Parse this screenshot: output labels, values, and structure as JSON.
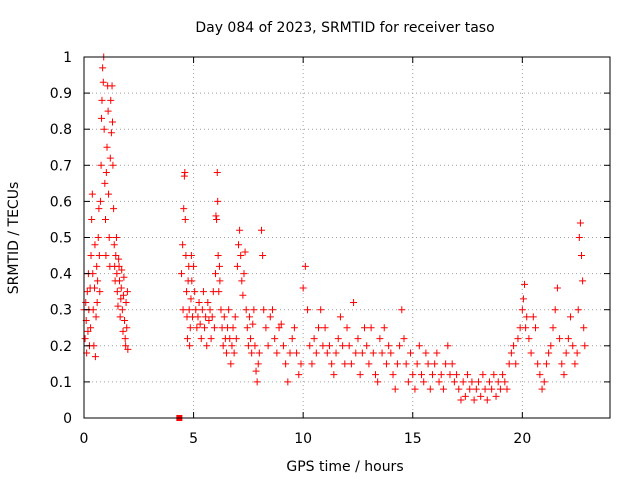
{
  "chart_data": {
    "type": "scatter",
    "title": "Day 084 of 2023, SRMTID for receiver taso",
    "xlabel": "GPS time / hours",
    "ylabel": "SRMTID / TECUs",
    "xlim": [
      0,
      24
    ],
    "ylim": [
      0,
      1
    ],
    "x_ticks": [
      0,
      5,
      10,
      15,
      20
    ],
    "x_tick_labels": [
      "0",
      "5",
      "10",
      "15",
      "20"
    ],
    "y_ticks": [
      0,
      0.1,
      0.2,
      0.3,
      0.4,
      0.5,
      0.6,
      0.7,
      0.8,
      0.9,
      1
    ],
    "y_tick_labels": [
      "0",
      "0.1",
      "0.2",
      "0.3",
      "0.4",
      "0.5",
      "0.6",
      "0.7",
      "0.8",
      "0.9",
      "1"
    ],
    "grid": true,
    "marker": "+",
    "color": "#ff0000",
    "gap_marker": {
      "x": 4.35,
      "y": 0.0
    },
    "series": [
      {
        "name": "SRMTID",
        "points": [
          [
            0.0,
            0.3
          ],
          [
            0.05,
            0.22
          ],
          [
            0.08,
            0.32
          ],
          [
            0.1,
            0.27
          ],
          [
            0.12,
            0.18
          ],
          [
            0.15,
            0.35
          ],
          [
            0.18,
            0.24
          ],
          [
            0.2,
            0.4
          ],
          [
            0.22,
            0.3
          ],
          [
            0.25,
            0.2
          ],
          [
            0.28,
            0.36
          ],
          [
            0.3,
            0.25
          ],
          [
            0.32,
            0.45
          ],
          [
            0.35,
            0.55
          ],
          [
            0.38,
            0.62
          ],
          [
            0.4,
            0.4
          ],
          [
            0.42,
            0.3
          ],
          [
            0.45,
            0.2
          ],
          [
            0.48,
            0.36
          ],
          [
            0.5,
            0.48
          ],
          [
            0.52,
            0.17
          ],
          [
            0.55,
            0.28
          ],
          [
            0.58,
            0.42
          ],
          [
            0.6,
            0.32
          ],
          [
            0.62,
            0.38
          ],
          [
            0.65,
            0.5
          ],
          [
            0.68,
            0.58
          ],
          [
            0.7,
            0.45
          ],
          [
            0.72,
            0.35
          ],
          [
            0.75,
            0.6
          ],
          [
            0.78,
            0.7
          ],
          [
            0.8,
            0.83
          ],
          [
            0.82,
            0.88
          ],
          [
            0.85,
            0.97
          ],
          [
            0.88,
            0.93
          ],
          [
            0.9,
            1.0
          ],
          [
            0.92,
            0.8
          ],
          [
            0.95,
            0.65
          ],
          [
            0.98,
            0.55
          ],
          [
            1.0,
            0.45
          ],
          [
            1.02,
            0.68
          ],
          [
            1.05,
            0.75
          ],
          [
            1.08,
            0.92
          ],
          [
            1.1,
            0.85
          ],
          [
            1.12,
            0.62
          ],
          [
            1.15,
            0.5
          ],
          [
            1.18,
            0.42
          ],
          [
            1.2,
            0.72
          ],
          [
            1.22,
            0.88
          ],
          [
            1.25,
            0.79
          ],
          [
            1.28,
            0.92
          ],
          [
            1.3,
            0.82
          ],
          [
            1.32,
            0.7
          ],
          [
            1.35,
            0.58
          ],
          [
            1.38,
            0.48
          ],
          [
            1.4,
            0.42
          ],
          [
            1.42,
            0.38
          ],
          [
            1.45,
            0.45
          ],
          [
            1.48,
            0.5
          ],
          [
            1.5,
            0.4
          ],
          [
            1.52,
            0.35
          ],
          [
            1.55,
            0.31
          ],
          [
            1.58,
            0.44
          ],
          [
            1.6,
            0.42
          ],
          [
            1.62,
            0.38
          ],
          [
            1.65,
            0.28
          ],
          [
            1.68,
            0.33
          ],
          [
            1.7,
            0.36
          ],
          [
            1.72,
            0.41
          ],
          [
            1.75,
            0.3
          ],
          [
            1.78,
            0.24
          ],
          [
            1.8,
            0.34
          ],
          [
            1.82,
            0.39
          ],
          [
            1.85,
            0.27
          ],
          [
            1.88,
            0.22
          ],
          [
            1.9,
            0.2
          ],
          [
            1.92,
            0.32
          ],
          [
            1.95,
            0.25
          ],
          [
            1.98,
            0.35
          ],
          [
            2.0,
            0.19
          ],
          [
            4.45,
            0.4
          ],
          [
            4.5,
            0.48
          ],
          [
            4.52,
            0.3
          ],
          [
            4.55,
            0.58
          ],
          [
            4.58,
            0.67
          ],
          [
            4.6,
            0.68
          ],
          [
            4.62,
            0.55
          ],
          [
            4.65,
            0.45
          ],
          [
            4.68,
            0.35
          ],
          [
            4.7,
            0.28
          ],
          [
            4.72,
            0.22
          ],
          [
            4.75,
            0.38
          ],
          [
            4.78,
            0.42
          ],
          [
            4.8,
            0.3
          ],
          [
            4.82,
            0.2
          ],
          [
            4.85,
            0.25
          ],
          [
            4.88,
            0.33
          ],
          [
            4.9,
            0.45
          ],
          [
            4.92,
            0.38
          ],
          [
            4.95,
            0.28
          ],
          [
            5.0,
            0.42
          ],
          [
            5.05,
            0.35
          ],
          [
            5.1,
            0.3
          ],
          [
            5.15,
            0.25
          ],
          [
            5.2,
            0.28
          ],
          [
            5.25,
            0.32
          ],
          [
            5.3,
            0.26
          ],
          [
            5.35,
            0.22
          ],
          [
            5.4,
            0.3
          ],
          [
            5.45,
            0.35
          ],
          [
            5.5,
            0.25
          ],
          [
            5.55,
            0.28
          ],
          [
            5.6,
            0.2
          ],
          [
            5.65,
            0.32
          ],
          [
            5.7,
            0.27
          ],
          [
            5.75,
            0.3
          ],
          [
            5.8,
            0.22
          ],
          [
            5.85,
            0.28
          ],
          [
            5.9,
            0.35
          ],
          [
            5.95,
            0.25
          ],
          [
            6.0,
            0.4
          ],
          [
            6.02,
            0.56
          ],
          [
            6.05,
            0.55
          ],
          [
            6.08,
            0.68
          ],
          [
            6.1,
            0.6
          ],
          [
            6.12,
            0.45
          ],
          [
            6.15,
            0.35
          ],
          [
            6.18,
            0.42
          ],
          [
            6.2,
            0.38
          ],
          [
            6.25,
            0.3
          ],
          [
            6.3,
            0.25
          ],
          [
            6.35,
            0.2
          ],
          [
            6.4,
            0.28
          ],
          [
            6.45,
            0.22
          ],
          [
            6.5,
            0.18
          ],
          [
            6.55,
            0.25
          ],
          [
            6.6,
            0.3
          ],
          [
            6.65,
            0.22
          ],
          [
            6.7,
            0.15
          ],
          [
            6.75,
            0.2
          ],
          [
            6.8,
            0.25
          ],
          [
            6.85,
            0.18
          ],
          [
            6.9,
            0.28
          ],
          [
            6.95,
            0.22
          ],
          [
            7.0,
            0.42
          ],
          [
            7.05,
            0.48
          ],
          [
            7.1,
            0.52
          ],
          [
            7.15,
            0.45
          ],
          [
            7.2,
            0.38
          ],
          [
            7.25,
            0.34
          ],
          [
            7.3,
            0.4
          ],
          [
            7.35,
            0.46
          ],
          [
            7.4,
            0.3
          ],
          [
            7.45,
            0.25
          ],
          [
            7.5,
            0.2
          ],
          [
            7.55,
            0.28
          ],
          [
            7.6,
            0.22
          ],
          [
            7.65,
            0.18
          ],
          [
            7.7,
            0.26
          ],
          [
            7.75,
            0.3
          ],
          [
            7.8,
            0.2
          ],
          [
            7.85,
            0.13
          ],
          [
            7.9,
            0.1
          ],
          [
            7.95,
            0.15
          ],
          [
            8.0,
            0.18
          ],
          [
            8.1,
            0.52
          ],
          [
            8.15,
            0.45
          ],
          [
            8.2,
            0.3
          ],
          [
            8.3,
            0.25
          ],
          [
            8.4,
            0.2
          ],
          [
            8.5,
            0.28
          ],
          [
            8.6,
            0.3
          ],
          [
            8.7,
            0.22
          ],
          [
            8.8,
            0.18
          ],
          [
            8.9,
            0.25
          ],
          [
            9.0,
            0.26
          ],
          [
            9.1,
            0.2
          ],
          [
            9.2,
            0.15
          ],
          [
            9.3,
            0.1
          ],
          [
            9.4,
            0.18
          ],
          [
            9.5,
            0.22
          ],
          [
            9.6,
            0.25
          ],
          [
            9.7,
            0.18
          ],
          [
            9.8,
            0.12
          ],
          [
            9.9,
            0.15
          ],
          [
            10.0,
            0.36
          ],
          [
            10.1,
            0.42
          ],
          [
            10.2,
            0.3
          ],
          [
            10.3,
            0.2
          ],
          [
            10.4,
            0.15
          ],
          [
            10.5,
            0.22
          ],
          [
            10.6,
            0.18
          ],
          [
            10.7,
            0.25
          ],
          [
            10.8,
            0.3
          ],
          [
            10.9,
            0.2
          ],
          [
            11.0,
            0.25
          ],
          [
            11.1,
            0.18
          ],
          [
            11.2,
            0.2
          ],
          [
            11.3,
            0.15
          ],
          [
            11.4,
            0.12
          ],
          [
            11.5,
            0.18
          ],
          [
            11.6,
            0.22
          ],
          [
            11.7,
            0.28
          ],
          [
            11.8,
            0.2
          ],
          [
            11.9,
            0.15
          ],
          [
            12.0,
            0.25
          ],
          [
            12.1,
            0.2
          ],
          [
            12.2,
            0.15
          ],
          [
            12.3,
            0.32
          ],
          [
            12.4,
            0.18
          ],
          [
            12.5,
            0.22
          ],
          [
            12.6,
            0.12
          ],
          [
            12.7,
            0.18
          ],
          [
            12.8,
            0.25
          ],
          [
            12.9,
            0.2
          ],
          [
            13.0,
            0.15
          ],
          [
            13.1,
            0.25
          ],
          [
            13.2,
            0.18
          ],
          [
            13.3,
            0.12
          ],
          [
            13.4,
            0.1
          ],
          [
            13.5,
            0.22
          ],
          [
            13.6,
            0.18
          ],
          [
            13.7,
            0.25
          ],
          [
            13.8,
            0.15
          ],
          [
            13.9,
            0.2
          ],
          [
            14.0,
            0.18
          ],
          [
            14.1,
            0.12
          ],
          [
            14.2,
            0.08
          ],
          [
            14.3,
            0.15
          ],
          [
            14.4,
            0.2
          ],
          [
            14.5,
            0.3
          ],
          [
            14.6,
            0.22
          ],
          [
            14.7,
            0.15
          ],
          [
            14.8,
            0.1
          ],
          [
            14.9,
            0.18
          ],
          [
            15.0,
            0.12
          ],
          [
            15.1,
            0.08
          ],
          [
            15.2,
            0.15
          ],
          [
            15.3,
            0.2
          ],
          [
            15.4,
            0.12
          ],
          [
            15.5,
            0.1
          ],
          [
            15.6,
            0.18
          ],
          [
            15.7,
            0.15
          ],
          [
            15.8,
            0.08
          ],
          [
            15.9,
            0.12
          ],
          [
            16.0,
            0.15
          ],
          [
            16.1,
            0.18
          ],
          [
            16.2,
            0.1
          ],
          [
            16.3,
            0.12
          ],
          [
            16.4,
            0.08
          ],
          [
            16.5,
            0.15
          ],
          [
            16.6,
            0.2
          ],
          [
            16.7,
            0.12
          ],
          [
            16.8,
            0.15
          ],
          [
            16.9,
            0.1
          ],
          [
            17.0,
            0.12
          ],
          [
            17.1,
            0.08
          ],
          [
            17.2,
            0.05
          ],
          [
            17.3,
            0.1
          ],
          [
            17.4,
            0.06
          ],
          [
            17.5,
            0.12
          ],
          [
            17.6,
            0.08
          ],
          [
            17.7,
            0.1
          ],
          [
            17.8,
            0.05
          ],
          [
            17.9,
            0.08
          ],
          [
            18.0,
            0.1
          ],
          [
            18.1,
            0.06
          ],
          [
            18.2,
            0.12
          ],
          [
            18.3,
            0.08
          ],
          [
            18.4,
            0.05
          ],
          [
            18.5,
            0.1
          ],
          [
            18.6,
            0.08
          ],
          [
            18.7,
            0.12
          ],
          [
            18.8,
            0.06
          ],
          [
            18.9,
            0.1
          ],
          [
            19.0,
            0.08
          ],
          [
            19.1,
            0.12
          ],
          [
            19.2,
            0.1
          ],
          [
            19.3,
            0.08
          ],
          [
            19.4,
            0.15
          ],
          [
            19.5,
            0.18
          ],
          [
            19.6,
            0.2
          ],
          [
            19.7,
            0.15
          ],
          [
            19.8,
            0.22
          ],
          [
            19.9,
            0.25
          ],
          [
            20.0,
            0.3
          ],
          [
            20.05,
            0.33
          ],
          [
            20.1,
            0.37
          ],
          [
            20.15,
            0.25
          ],
          [
            20.2,
            0.28
          ],
          [
            20.3,
            0.22
          ],
          [
            20.4,
            0.18
          ],
          [
            20.5,
            0.28
          ],
          [
            20.6,
            0.25
          ],
          [
            20.7,
            0.15
          ],
          [
            20.8,
            0.12
          ],
          [
            20.9,
            0.08
          ],
          [
            21.0,
            0.1
          ],
          [
            21.1,
            0.15
          ],
          [
            21.2,
            0.18
          ],
          [
            21.3,
            0.2
          ],
          [
            21.4,
            0.25
          ],
          [
            21.5,
            0.3
          ],
          [
            21.6,
            0.36
          ],
          [
            21.7,
            0.22
          ],
          [
            21.8,
            0.15
          ],
          [
            21.9,
            0.12
          ],
          [
            22.0,
            0.18
          ],
          [
            22.1,
            0.22
          ],
          [
            22.2,
            0.28
          ],
          [
            22.3,
            0.2
          ],
          [
            22.4,
            0.15
          ],
          [
            22.5,
            0.18
          ],
          [
            22.55,
            0.3
          ],
          [
            22.6,
            0.5
          ],
          [
            22.65,
            0.54
          ],
          [
            22.7,
            0.45
          ],
          [
            22.75,
            0.38
          ],
          [
            22.8,
            0.25
          ],
          [
            22.85,
            0.2
          ]
        ]
      }
    ]
  }
}
